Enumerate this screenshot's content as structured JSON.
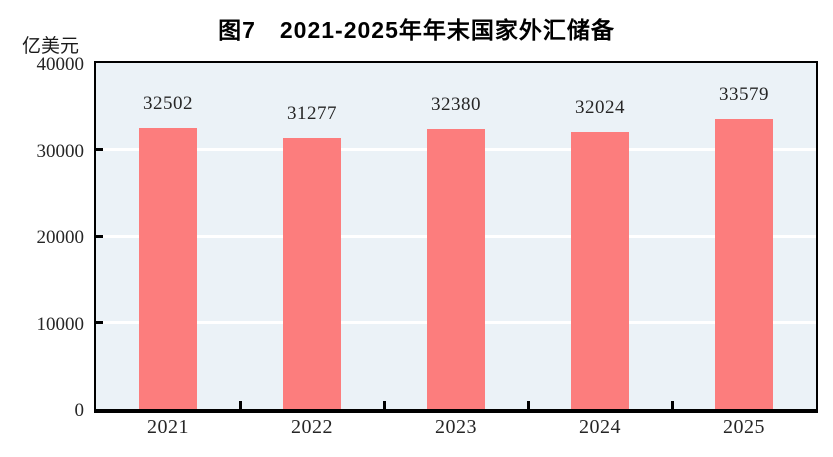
{
  "figure": {
    "title": "图7　2021-2025年年末国家外汇储备",
    "unit_label": "亿美元"
  },
  "chart_data": {
    "type": "bar",
    "title": "图7　2021-2025年年末国家外汇储备",
    "categories": [
      "2021",
      "2022",
      "2023",
      "2024",
      "2025"
    ],
    "values": [
      32502,
      31277,
      32380,
      32024,
      33579
    ],
    "data_labels": [
      "32502",
      "31277",
      "32380",
      "32024",
      "33579"
    ],
    "xlabel": "",
    "ylabel": "亿美元",
    "ylim": [
      0,
      40000
    ],
    "yticks": [
      0,
      10000,
      20000,
      30000,
      40000
    ],
    "ytick_labels": [
      "0",
      "10000",
      "20000",
      "30000",
      "40000"
    ],
    "grid": "horizontal",
    "legend": "none",
    "colors": {
      "bar": "#FC7D7D",
      "plot_background": "#EBF2F7",
      "gridline": "#FFFFFF",
      "axis": "#000000",
      "page_background": "#FFFFFF",
      "text": "#262626"
    }
  }
}
